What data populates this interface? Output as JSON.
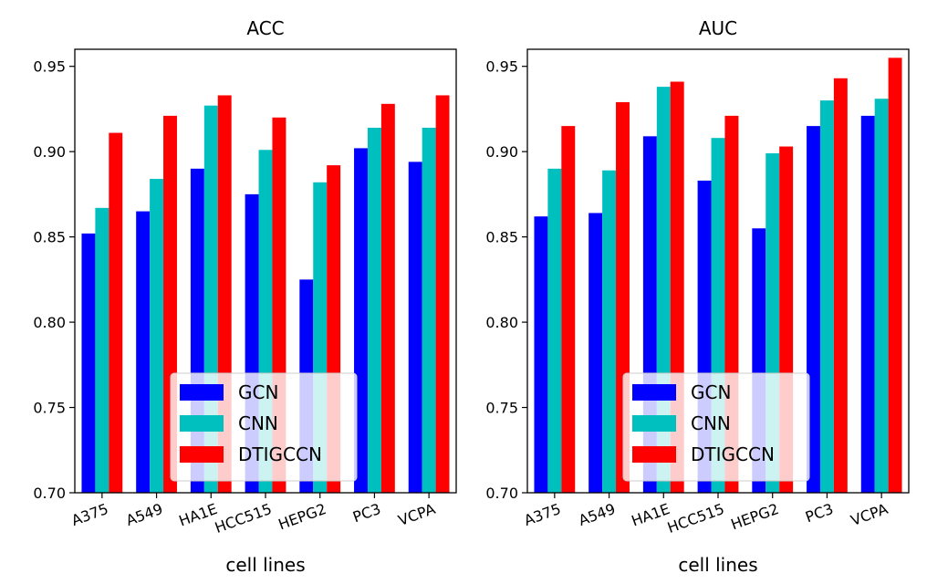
{
  "chart_data": [
    {
      "type": "bar",
      "title": "ACC",
      "xlabel": "cell lines",
      "ylabel": "",
      "ylim": [
        0.7,
        0.96
      ],
      "yticks": [
        "0.70",
        "0.75",
        "0.80",
        "0.85",
        "0.90",
        "0.95"
      ],
      "categories": [
        "A375",
        "A549",
        "HA1E",
        "HCC515",
        "HEPG2",
        "PC3",
        "VCPA"
      ],
      "legend_position": "bottom-center",
      "series": [
        {
          "name": "GCN",
          "color": "#0000ff",
          "values": [
            0.852,
            0.865,
            0.89,
            0.875,
            0.825,
            0.902,
            0.894
          ]
        },
        {
          "name": "CNN",
          "color": "#00bfbf",
          "values": [
            0.867,
            0.884,
            0.927,
            0.901,
            0.882,
            0.914,
            0.914
          ]
        },
        {
          "name": "DTIGCCN",
          "color": "#ff0000",
          "values": [
            0.911,
            0.921,
            0.933,
            0.92,
            0.892,
            0.928,
            0.933
          ]
        }
      ]
    },
    {
      "type": "bar",
      "title": "AUC",
      "xlabel": "cell lines",
      "ylabel": "",
      "ylim": [
        0.7,
        0.96
      ],
      "yticks": [
        "0.70",
        "0.75",
        "0.80",
        "0.85",
        "0.90",
        "0.95"
      ],
      "categories": [
        "A375",
        "A549",
        "HA1E",
        "HCC515",
        "HEPG2",
        "PC3",
        "VCPA"
      ],
      "legend_position": "bottom-center",
      "series": [
        {
          "name": "GCN",
          "color": "#0000ff",
          "values": [
            0.862,
            0.864,
            0.909,
            0.883,
            0.855,
            0.915,
            0.921
          ]
        },
        {
          "name": "CNN",
          "color": "#00bfbf",
          "values": [
            0.89,
            0.889,
            0.938,
            0.908,
            0.899,
            0.93,
            0.931
          ]
        },
        {
          "name": "DTIGCCN",
          "color": "#ff0000",
          "values": [
            0.915,
            0.929,
            0.941,
            0.921,
            0.903,
            0.943,
            0.955
          ]
        }
      ]
    }
  ]
}
